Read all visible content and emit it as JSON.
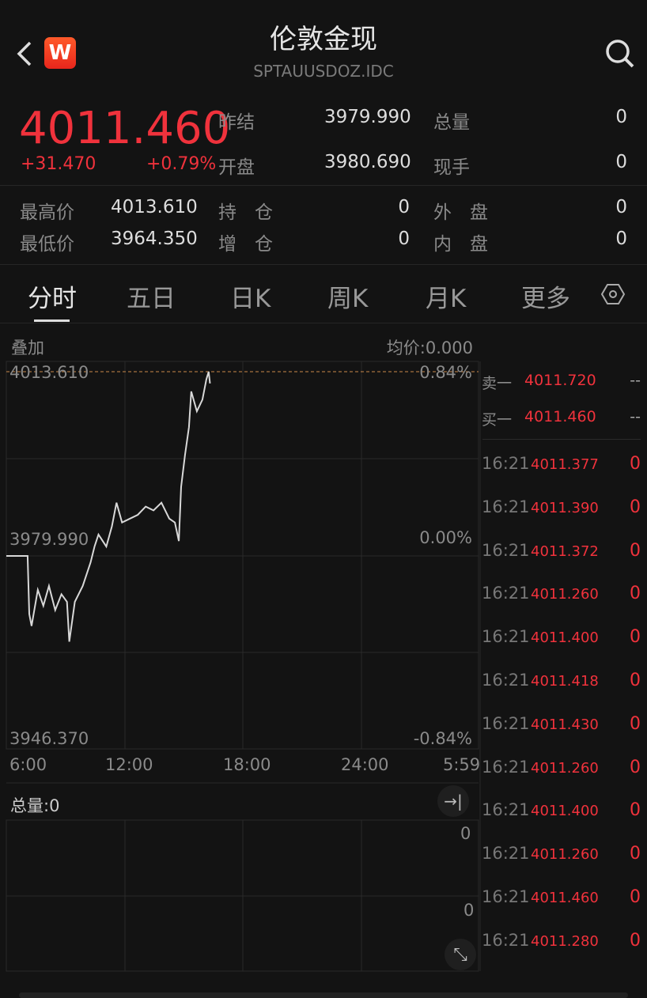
{
  "header": {
    "title": "伦敦金现",
    "code": "SPTAUUSDOZ.IDC",
    "back_icon": "chevron-left-icon",
    "logo_letter": "W",
    "search_icon": "search-icon"
  },
  "quote": {
    "price": "4011.460",
    "change": "+31.470",
    "change_pct": "+0.79%",
    "stats": [
      {
        "label": "昨结",
        "value": "3979.990"
      },
      {
        "label": "总量",
        "value": "0"
      },
      {
        "label": "开盘",
        "value": "3980.690"
      },
      {
        "label": "现手",
        "value": "0"
      },
      {
        "label": "最高价",
        "value": "4013.610"
      },
      {
        "label": "持　仓",
        "value": "0"
      },
      {
        "label": "外　盘",
        "value": "0"
      },
      {
        "label": "最低价",
        "value": "3964.350"
      },
      {
        "label": "增　仓",
        "value": "0"
      },
      {
        "label": "内　盘",
        "value": "0"
      }
    ]
  },
  "tabs": [
    "分时",
    "五日",
    "日K",
    "周K",
    "月K",
    "更多"
  ],
  "chart": {
    "overlay_label": "叠加",
    "avg_label": "均价:0.000",
    "volume_label": "总量:0",
    "vol_ticks": [
      "0",
      "0"
    ]
  },
  "chart_data": {
    "type": "line",
    "ylim": [
      3946.37,
      4013.61
    ],
    "y_labels": {
      "top": "4013.610",
      "mid": "3979.990",
      "bottom": "3946.370"
    },
    "pct_labels": {
      "top": "0.84%",
      "mid": "0.00%",
      "bottom": "-0.84%"
    },
    "x_ticks": [
      "6:00",
      "12:00",
      "18:00",
      "24:00",
      "5:59"
    ],
    "prev_close": 3979.99,
    "high": 4013.61,
    "points": [
      [
        "6:00",
        3979.99
      ],
      [
        "7:05",
        3979.99
      ],
      [
        "7:10",
        3969.4
      ],
      [
        "7:17",
        3967.2
      ],
      [
        "7:36",
        3973.8
      ],
      [
        "7:53",
        3970.9
      ],
      [
        "8:10",
        3974.5
      ],
      [
        "8:29",
        3970.1
      ],
      [
        "8:48",
        3973.0
      ],
      [
        "9:05",
        3971.6
      ],
      [
        "9:12",
        3964.35
      ],
      [
        "9:29",
        3971.6
      ],
      [
        "9:53",
        3974.5
      ],
      [
        "10:17",
        3978.8
      ],
      [
        "10:29",
        3981.7
      ],
      [
        "10:41",
        3983.9
      ],
      [
        "11:05",
        3981.7
      ],
      [
        "11:22",
        3985.4
      ],
      [
        "11:36",
        3989.7
      ],
      [
        "11:53",
        3986.1
      ],
      [
        "12:17",
        3986.8
      ],
      [
        "12:41",
        3987.5
      ],
      [
        "13:05",
        3989.0
      ],
      [
        "13:29",
        3988.3
      ],
      [
        "13:53",
        3989.7
      ],
      [
        "14:17",
        3986.8
      ],
      [
        "14:34",
        3986.1
      ],
      [
        "14:46",
        3982.7
      ],
      [
        "14:53",
        3992.6
      ],
      [
        "15:05",
        3998.4
      ],
      [
        "15:17",
        4003.5
      ],
      [
        "15:24",
        4010.0
      ],
      [
        "15:41",
        4006.4
      ],
      [
        "15:58",
        4008.5
      ],
      [
        "16:10",
        4012.2
      ],
      [
        "16:17",
        4013.61
      ],
      [
        "16:21",
        4011.46
      ]
    ]
  },
  "orderbook": [
    {
      "label": "卖一",
      "price": "4011.720",
      "vol": "--"
    },
    {
      "label": "买一",
      "price": "4011.460",
      "vol": "--"
    }
  ],
  "trades": [
    [
      "16:21",
      "4011.377",
      "0"
    ],
    [
      "16:21",
      "4011.390",
      "0"
    ],
    [
      "16:21",
      "4011.372",
      "0"
    ],
    [
      "16:21",
      "4011.260",
      "0"
    ],
    [
      "16:21",
      "4011.400",
      "0"
    ],
    [
      "16:21",
      "4011.418",
      "0"
    ],
    [
      "16:21",
      "4011.430",
      "0"
    ],
    [
      "16:21",
      "4011.260",
      "0"
    ],
    [
      "16:21",
      "4011.400",
      "0"
    ],
    [
      "16:21",
      "4011.260",
      "0"
    ],
    [
      "16:21",
      "4011.460",
      "0"
    ],
    [
      "16:21",
      "4011.280",
      "0"
    ]
  ]
}
